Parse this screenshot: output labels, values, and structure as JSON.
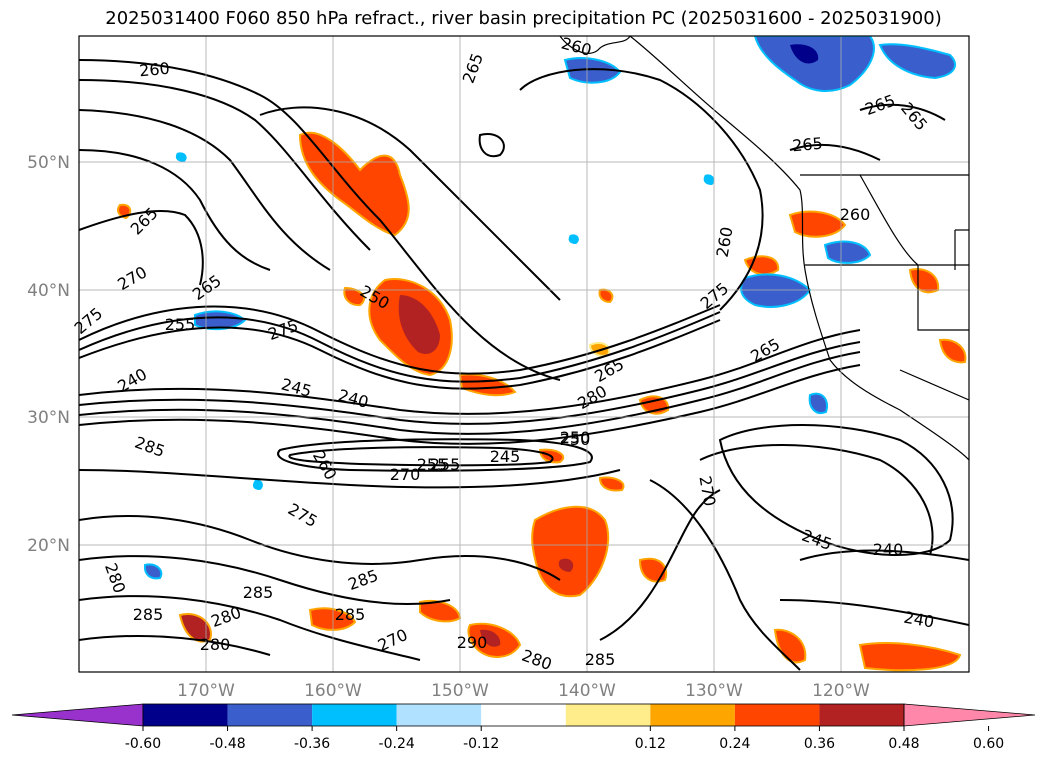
{
  "title": "2025031400 F060 850 hPa refract., river basin precipitation PC (2025031600 - 2025031900)",
  "lat_labels": [
    "50°N",
    "40°N",
    "30°N",
    "20°N"
  ],
  "lon_labels": [
    "170°W",
    "160°W",
    "150°W",
    "140°W",
    "130°W",
    "120°W"
  ],
  "colorbar": {
    "ticks": [
      "-0.60",
      "-0.48",
      "-0.36",
      "-0.24",
      "-0.12",
      "0.12",
      "0.24",
      "0.36",
      "0.48",
      "0.60"
    ],
    "colors": [
      "#9932cc",
      "#00008b",
      "#3a5fcd",
      "#00bfff",
      "#b0e2ff",
      "#ffffff",
      "#ffec8b",
      "#ffa500",
      "#ff4500",
      "#b22222",
      "#ff88aa"
    ]
  },
  "contour_labels": [
    "260",
    "260",
    "265",
    "265",
    "265",
    "265",
    "265",
    "265",
    "265",
    "270",
    "275",
    "275",
    "275",
    "240",
    "245",
    "240",
    "250",
    "245",
    "255",
    "250",
    "255",
    "260",
    "265",
    "270",
    "280",
    "285",
    "280",
    "285",
    "285",
    "280",
    "275",
    "270",
    "280",
    "285",
    "285",
    "285",
    "280",
    "290",
    "260",
    "270",
    "245",
    "240",
    "240",
    "250",
    "255",
    "260"
  ],
  "colors": {
    "contour": "#000000",
    "grid": "#aaaaaa",
    "coast": "#000000"
  }
}
